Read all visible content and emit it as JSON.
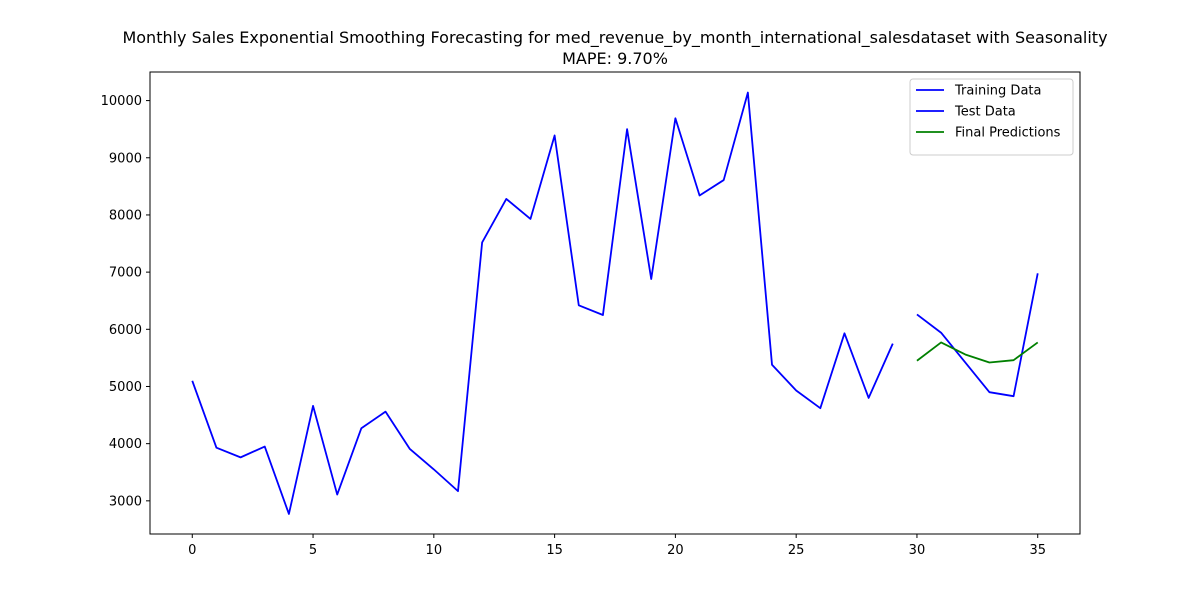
{
  "chart_data": {
    "type": "line",
    "title": "Monthly Sales Exponential Smoothing Forecasting for med_revenue_by_month_international_salesdataset with Seasonality",
    "subtitle": "MAPE: 9.70%",
    "xlabel": "",
    "ylabel": "",
    "xlim": [
      -1.75,
      36.75
    ],
    "ylim": [
      2420,
      10500
    ],
    "x_ticks": [
      0,
      5,
      10,
      15,
      20,
      25,
      30,
      35
    ],
    "y_ticks": [
      3000,
      4000,
      5000,
      6000,
      7000,
      8000,
      9000,
      10000
    ],
    "grid": false,
    "legend_position": "top-right",
    "series": [
      {
        "name": "Training Data",
        "color": "#0000ff",
        "x": [
          0,
          1,
          2,
          3,
          4,
          5,
          6,
          7,
          8,
          9,
          10,
          11,
          12,
          13,
          14,
          15,
          16,
          17,
          18,
          19,
          20,
          21,
          22,
          23,
          24,
          25,
          26,
          27,
          28,
          29
        ],
        "values": [
          5100,
          3930,
          3760,
          3950,
          2770,
          4660,
          3110,
          4270,
          4560,
          3910,
          3550,
          3170,
          7520,
          8280,
          7930,
          9390,
          6420,
          6250,
          9500,
          6880,
          9690,
          8340,
          8610,
          10140,
          5380,
          4930,
          4620,
          5930,
          4800,
          5750
        ]
      },
      {
        "name": "Test Data",
        "color": "#0000ff",
        "x": [
          30,
          31,
          32,
          33,
          34,
          35
        ],
        "values": [
          6260,
          5940,
          5420,
          4900,
          4830,
          6980
        ]
      },
      {
        "name": "Final Predictions",
        "color": "#008000",
        "x": [
          30,
          31,
          32,
          33,
          34,
          35
        ],
        "values": [
          5450,
          5770,
          5560,
          5420,
          5460,
          5770
        ]
      }
    ]
  }
}
